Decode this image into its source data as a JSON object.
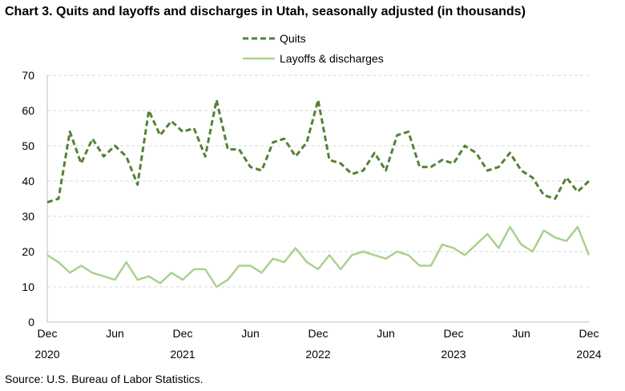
{
  "title": "Chart 3. Quits and layoffs and discharges in Utah, seasonally adjusted (in thousands)",
  "source": "Source: U.S. Bureau of Labor Statistics.",
  "chart_data": {
    "type": "line",
    "title": "Chart 3. Quits and layoffs and discharges in Utah, seasonally adjusted (in thousands)",
    "xlabel": "",
    "ylabel": "",
    "ylim": [
      0,
      70
    ],
    "yticks": [
      0,
      10,
      20,
      30,
      40,
      50,
      60,
      70
    ],
    "grid": "horizontal dashed",
    "legend": "top-center",
    "x_start": "Dec 2020",
    "x_end": "Dec 2024",
    "x_tick_labels": [
      {
        "month": "Dec",
        "year": "2020"
      },
      {
        "month": "Jun",
        "year": ""
      },
      {
        "month": "Dec",
        "year": "2021"
      },
      {
        "month": "Jun",
        "year": ""
      },
      {
        "month": "Dec",
        "year": "2022"
      },
      {
        "month": "Jun",
        "year": ""
      },
      {
        "month": "Dec",
        "year": "2023"
      },
      {
        "month": "Jun",
        "year": ""
      },
      {
        "month": "Dec",
        "year": "2024"
      }
    ],
    "series": [
      {
        "name": "Quits",
        "color": "#548235",
        "style": "dashed",
        "values": [
          34,
          35,
          54,
          45,
          52,
          47,
          50,
          47,
          39,
          60,
          53,
          57,
          54,
          55,
          47,
          63,
          49,
          49,
          44,
          43,
          51,
          52,
          47,
          51,
          63,
          46,
          45,
          42,
          43,
          48,
          43,
          53,
          54,
          44,
          44,
          46,
          45,
          50,
          48,
          43,
          44,
          48,
          43,
          41,
          36,
          35,
          41,
          37,
          40
        ]
      },
      {
        "name": "Layoffs & discharges",
        "color": "#a9d18e",
        "style": "solid",
        "values": [
          19,
          17,
          14,
          16,
          14,
          13,
          12,
          17,
          12,
          13,
          11,
          14,
          12,
          15,
          15,
          10,
          12,
          16,
          16,
          14,
          18,
          17,
          21,
          17,
          15,
          19,
          15,
          19,
          20,
          19,
          18,
          20,
          19,
          16,
          16,
          22,
          21,
          19,
          22,
          25,
          21,
          27,
          22,
          20,
          26,
          24,
          23,
          27,
          19
        ]
      }
    ]
  }
}
